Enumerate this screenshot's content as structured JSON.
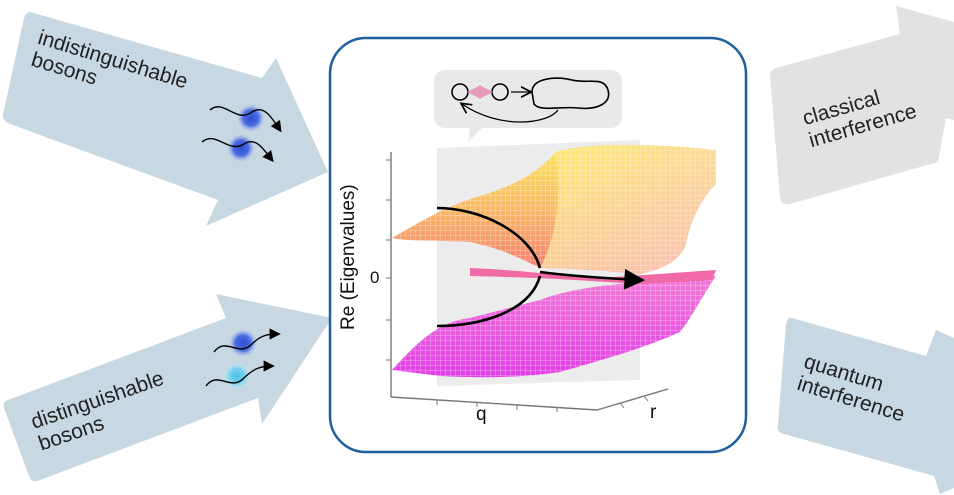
{
  "arrows": {
    "top_left": "indistinguishable\nbosons",
    "bottom_left": "distinguishable\nbosons",
    "top_right": "classical\ninterference",
    "bottom_right": "quantum\ninterference"
  },
  "plot": {
    "ylabel": "Re (Eigenvalues)",
    "xlabel": "q",
    "zlabel": "r",
    "zero_tick": "0"
  },
  "colors": {
    "arrow_fill": "#c8d8e2",
    "panel_border": "#1f5f9e",
    "surface_top": "#f7e66a",
    "surface_mid": "#f59a6a",
    "surface_bottom": "#e04be0",
    "boson_blue": "#3b5fd6",
    "boson_cyan": "#5ec8ec"
  }
}
